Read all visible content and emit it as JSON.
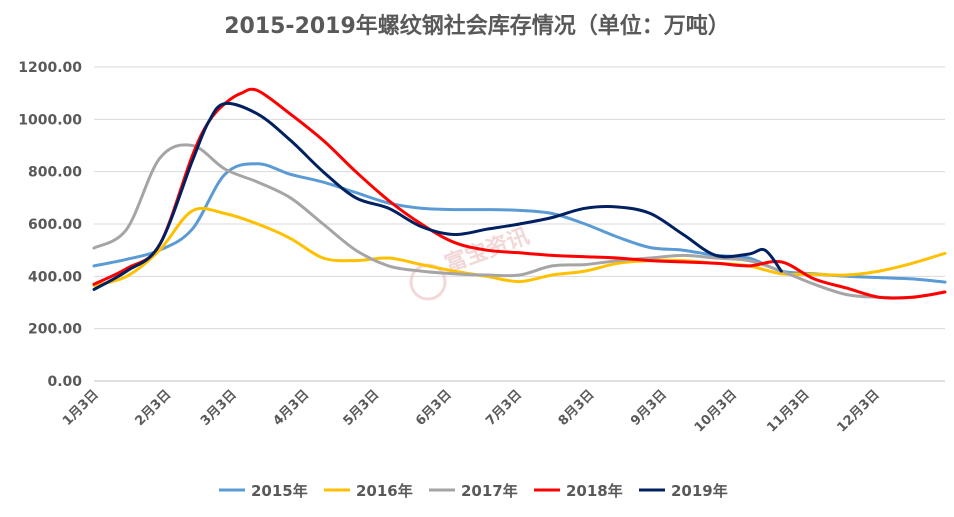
{
  "chart_data": {
    "type": "line",
    "title": "2015-2019年螺纹钢社会库存情况（单位：万吨）",
    "xlabel": "",
    "ylabel": "",
    "ylim": [
      0,
      1200
    ],
    "yticks": [
      0,
      200,
      400,
      600,
      800,
      1000,
      1200
    ],
    "ytick_labels": [
      "0.00",
      "200.00",
      "400.00",
      "600.00",
      "800.00",
      "1000.00",
      "1200.00"
    ],
    "x_domain": [
      0,
      52
    ],
    "x_ticks": [
      0,
      4.43,
      8.43,
      12.86,
      17.14,
      21.57,
      25.86,
      30.29,
      34.71,
      39,
      43.43,
      47.71
    ],
    "x_tick_labels": [
      "1月3日",
      "2月3日",
      "3月3日",
      "4月3日",
      "5月3日",
      "6月3日",
      "7月3日",
      "8月3日",
      "9月3日",
      "10月3日",
      "11月3日",
      "12月3日"
    ],
    "grid": true,
    "legend_position": "bottom",
    "watermark": "富宝资讯",
    "series": [
      {
        "name": "2015年",
        "color": "#5b9bd5",
        "x": [
          0,
          2,
          4,
          6,
          8,
          10,
          12,
          14,
          16,
          18,
          20,
          22,
          24,
          26,
          28,
          30,
          32,
          34,
          36,
          38,
          40,
          42,
          44,
          46,
          48,
          50,
          52
        ],
        "values": [
          440,
          465,
          500,
          580,
          790,
          830,
          790,
          760,
          720,
          680,
          660,
          655,
          655,
          652,
          640,
          600,
          550,
          510,
          500,
          480,
          470,
          420,
          410,
          400,
          395,
          390,
          378
        ]
      },
      {
        "name": "2016年",
        "color": "#ffc000",
        "x": [
          0,
          2,
          4,
          6,
          8,
          10,
          12,
          14,
          16,
          18,
          20,
          22,
          24,
          26,
          28,
          30,
          32,
          34,
          36,
          38,
          40,
          42,
          44,
          46,
          48,
          50,
          52
        ],
        "values": [
          365,
          400,
          500,
          650,
          640,
          600,
          545,
          470,
          460,
          470,
          445,
          420,
          400,
          380,
          405,
          420,
          450,
          460,
          460,
          450,
          440,
          410,
          408,
          405,
          420,
          450,
          488
        ]
      },
      {
        "name": "2017年",
        "color": "#a5a5a5",
        "x": [
          0,
          2,
          4,
          6,
          8,
          10,
          12,
          14,
          16,
          18,
          20,
          22,
          24,
          26,
          28,
          30,
          32,
          34,
          36,
          38,
          40,
          42,
          44,
          46,
          48,
          50,
          52
        ],
        "values": [
          508,
          580,
          850,
          900,
          810,
          760,
          700,
          600,
          500,
          440,
          420,
          410,
          405,
          405,
          440,
          445,
          460,
          470,
          480,
          470,
          460,
          420,
          370,
          330,
          320,
          320,
          340
        ]
      },
      {
        "name": "2018年",
        "color": "#ff0000",
        "x": [
          0,
          2,
          4,
          6,
          7,
          8,
          9,
          10,
          12,
          14,
          16,
          18,
          20,
          22,
          24,
          26,
          28,
          30,
          32,
          34,
          36,
          38,
          40,
          42,
          44,
          46,
          48,
          50,
          52
        ],
        "values": [
          370,
          430,
          520,
          860,
          990,
          1060,
          1100,
          1110,
          1020,
          920,
          800,
          690,
          600,
          530,
          500,
          490,
          480,
          475,
          470,
          460,
          455,
          450,
          440,
          455,
          390,
          355,
          320,
          320,
          340
        ]
      },
      {
        "name": "2019年",
        "color": "#002060",
        "x": [
          0,
          2,
          4,
          6,
          7,
          8,
          10,
          12,
          14,
          16,
          18,
          20,
          22,
          24,
          26,
          28,
          30,
          32,
          34,
          36,
          38,
          40,
          41,
          42
        ],
        "values": [
          350,
          420,
          520,
          840,
          990,
          1060,
          1020,
          920,
          800,
          700,
          660,
          590,
          560,
          580,
          600,
          625,
          660,
          665,
          640,
          560,
          480,
          485,
          500,
          420
        ]
      }
    ]
  }
}
